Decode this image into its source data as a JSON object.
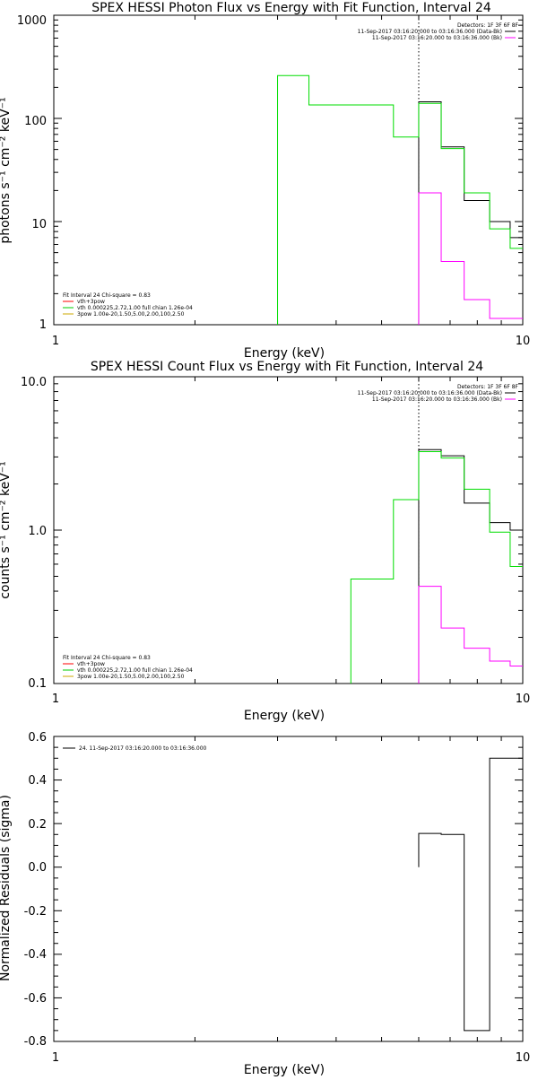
{
  "chart_data": [
    {
      "type": "line",
      "title": "SPEX HESSI Photon Flux vs Energy with Fit Function, Interval 24",
      "xlabel": "Energy (keV)",
      "ylabel": "photons s⁻¹ cm⁻² keV⁻¹",
      "xscale": "log",
      "yscale": "log",
      "xlim": [
        1,
        10
      ],
      "ylim": [
        1,
        1000
      ],
      "xticks": [
        "1",
        "10"
      ],
      "yticks": [
        "1",
        "10",
        "100",
        "1000"
      ],
      "vline_x": 6,
      "legend_right": {
        "header": "Detectors: 1F 3F 6F 8F",
        "entries": [
          {
            "label": "11-Sep-2017 03:16:20.000 to 03:16:36.000 (Data-Bk)",
            "color": "#000000"
          },
          {
            "label": "11-Sep-2017 03:16:20.000 to 03:16:36.000 (Bk)",
            "color": "#ff00ff"
          }
        ]
      },
      "legend_left": {
        "header": "Fit Interval 24   Chi-square = 0.83",
        "entries": [
          {
            "label": "vth+3pow",
            "color": "#ff0000"
          },
          {
            "label": "vth 0.000225,2.72,1.00  full chian 1.26e-04",
            "color": "#00cc00"
          },
          {
            "label": "3pow 1.00e-20,1.50,5.00,2.00,100,2.50",
            "color": "#ccaa00"
          }
        ]
      },
      "series": [
        {
          "role": "data",
          "color": "#000000",
          "edges": [
            6,
            6.7,
            7.5,
            8.5,
            9.4,
            10
          ],
          "values": [
            145,
            53,
            16,
            10,
            7
          ]
        },
        {
          "role": "fit",
          "color": "#00dd00",
          "edges": [
            3,
            3.5,
            4.3,
            5.3,
            6,
            6.7,
            7.5,
            8.5,
            9.4,
            10
          ],
          "values": [
            260,
            135,
            135,
            66,
            140,
            51,
            19,
            8.5,
            5.5
          ]
        },
        {
          "role": "background",
          "color": "#ff00ff",
          "edges": [
            6,
            6.7,
            7.5,
            8.5,
            9.4,
            10
          ],
          "values": [
            19,
            4.1,
            1.75,
            1.15,
            1.15
          ]
        }
      ]
    },
    {
      "type": "line",
      "title": "SPEX HESSI Count Flux vs Energy with Fit Function, Interval 24",
      "xlabel": "Energy (keV)",
      "ylabel": "counts s⁻¹ cm⁻² keV⁻¹",
      "xscale": "log",
      "yscale": "log",
      "xlim": [
        1,
        10
      ],
      "ylim": [
        0.1,
        10
      ],
      "xticks": [
        "1",
        "10"
      ],
      "yticks": [
        "0.1",
        "1.0",
        "10.0"
      ],
      "vline_x": 6,
      "legend_right": {
        "header": "Detectors: 1F 3F 6F 8F",
        "entries": [
          {
            "label": "11-Sep-2017 03:16:20.000 to 03:16:36.000 (Data-Bk)",
            "color": "#000000"
          },
          {
            "label": "11-Sep-2017 03:16:20.000 to 03:16:36.000 (Bk)",
            "color": "#ff00ff"
          }
        ]
      },
      "legend_left": {
        "header": "Fit Interval 24   Chi-square = 0.83",
        "entries": [
          {
            "label": "vth+3pow",
            "color": "#ff0000"
          },
          {
            "label": "vth 0.000225,2.72,1.00  full chian 1.26e-04",
            "color": "#00cc00"
          },
          {
            "label": "3pow 1.00e-20,1.50,5.00,2.00,100,2.50",
            "color": "#ccaa00"
          }
        ]
      },
      "series": [
        {
          "role": "data",
          "color": "#000000",
          "edges": [
            6,
            6.7,
            7.5,
            8.5,
            9.4,
            10
          ],
          "values": [
            3.35,
            3.05,
            1.5,
            1.12,
            1.0
          ]
        },
        {
          "role": "fit",
          "color": "#00dd00",
          "edges": [
            4.3,
            5.3,
            6,
            6.7,
            7.5,
            8.5,
            9.4,
            10
          ],
          "values": [
            0.48,
            1.58,
            3.25,
            2.95,
            1.85,
            0.97,
            0.58
          ]
        },
        {
          "role": "background",
          "color": "#ff00ff",
          "edges": [
            6,
            6.7,
            7.5,
            8.5,
            9.4,
            10
          ],
          "values": [
            0.43,
            0.23,
            0.17,
            0.14,
            0.13
          ]
        }
      ]
    },
    {
      "type": "line",
      "title": "",
      "xlabel": "Energy (keV)",
      "ylabel": "Normalized Residuals (sigma)",
      "xscale": "log",
      "yscale": "linear",
      "xlim": [
        1,
        10
      ],
      "ylim": [
        -0.8,
        0.6
      ],
      "xticks": [
        "1",
        "10"
      ],
      "yticks": [
        "0.6",
        "0.4",
        "0.2",
        "0.0",
        "-0.2",
        "-0.4",
        "-0.6",
        "-0.8"
      ],
      "legend_left": {
        "entries": [
          {
            "label": "24. 11-Sep-2017 03:16:20.000 to 03:16:36.000",
            "color": "#000000"
          }
        ]
      },
      "series": [
        {
          "role": "residuals",
          "color": "#000000",
          "edges": [
            6,
            6.7,
            7.5,
            8.5,
            9.4,
            10
          ],
          "values": [
            0.155,
            0.15,
            -0.75,
            0.5,
            0.5
          ]
        }
      ]
    }
  ]
}
